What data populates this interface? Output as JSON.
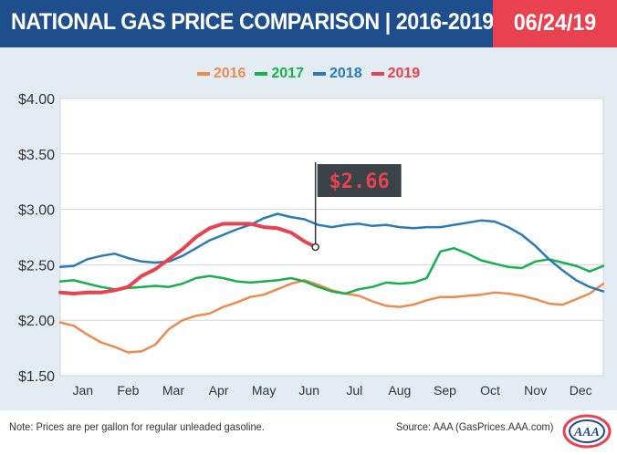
{
  "header": {
    "title": "NATIONAL GAS PRICE COMPARISON | 2016-2019",
    "date": "06/24/19"
  },
  "colors": {
    "header_bg": "#1f4e8c",
    "date_bg": "#e8414f",
    "panel_bg": "#e4ecf3",
    "s2016": "#ef8a4f",
    "s2017": "#16b04e",
    "s2018": "#2a7ab8",
    "s2019": "#e8414f"
  },
  "footer": {
    "note": "Note: Prices are per gallon for regular unleaded gasoline.",
    "source": "Source: AAA (GasPrices.AAA.com)"
  },
  "logo_text": "AAA",
  "chart_data": {
    "type": "line",
    "title": "NATIONAL GAS PRICE COMPARISON | 2016-2019",
    "x_unit": "month of year",
    "x_range": [
      0,
      12
    ],
    "categories": [
      "Jan",
      "Feb",
      "Mar",
      "Apr",
      "May",
      "Jun",
      "Jul",
      "Aug",
      "Sep",
      "Oct",
      "Nov",
      "Dec"
    ],
    "y_ticks": [
      "$4.00",
      "$3.50",
      "$3.00",
      "$2.50",
      "$2.00",
      "$1.50"
    ],
    "ylim": [
      1.5,
      4.0
    ],
    "grid": "horizontal",
    "legend_position": "top-center",
    "callout": {
      "label": "$2.66",
      "series": "2019",
      "x": 5.64,
      "y": 2.66
    },
    "series": [
      {
        "name": "2016",
        "color": "#ef8a4f",
        "x": [
          0,
          0.3,
          0.6,
          0.9,
          1.2,
          1.5,
          1.8,
          2.1,
          2.4,
          2.7,
          3.0,
          3.3,
          3.6,
          3.9,
          4.2,
          4.5,
          4.8,
          5.1,
          5.4,
          5.7,
          6.0,
          6.3,
          6.6,
          6.9,
          7.2,
          7.5,
          7.8,
          8.1,
          8.4,
          8.7,
          9.0,
          9.3,
          9.6,
          9.9,
          10.2,
          10.5,
          10.8,
          11.1,
          11.4,
          11.7,
          12.0
        ],
        "values": [
          1.98,
          1.95,
          1.87,
          1.8,
          1.76,
          1.71,
          1.72,
          1.78,
          1.92,
          2.0,
          2.04,
          2.06,
          2.12,
          2.16,
          2.21,
          2.23,
          2.28,
          2.33,
          2.36,
          2.32,
          2.27,
          2.24,
          2.22,
          2.17,
          2.13,
          2.12,
          2.14,
          2.18,
          2.21,
          2.21,
          2.22,
          2.23,
          2.25,
          2.24,
          2.22,
          2.19,
          2.15,
          2.14,
          2.19,
          2.24,
          2.33
        ]
      },
      {
        "name": "2017",
        "color": "#16b04e",
        "x": [
          0,
          0.3,
          0.6,
          0.9,
          1.2,
          1.5,
          1.8,
          2.1,
          2.4,
          2.7,
          3.0,
          3.3,
          3.6,
          3.9,
          4.2,
          4.5,
          4.8,
          5.1,
          5.4,
          5.7,
          6.0,
          6.3,
          6.6,
          6.9,
          7.2,
          7.5,
          7.8,
          8.1,
          8.4,
          8.7,
          9.0,
          9.3,
          9.6,
          9.9,
          10.2,
          10.5,
          10.8,
          11.1,
          11.4,
          11.7,
          12.0
        ],
        "values": [
          2.35,
          2.36,
          2.33,
          2.3,
          2.28,
          2.29,
          2.3,
          2.31,
          2.3,
          2.33,
          2.38,
          2.4,
          2.38,
          2.35,
          2.34,
          2.35,
          2.36,
          2.38,
          2.35,
          2.3,
          2.26,
          2.24,
          2.28,
          2.3,
          2.34,
          2.33,
          2.34,
          2.38,
          2.62,
          2.65,
          2.6,
          2.54,
          2.51,
          2.48,
          2.47,
          2.53,
          2.55,
          2.52,
          2.49,
          2.44,
          2.49
        ]
      },
      {
        "name": "2018",
        "color": "#2a7ab8",
        "x": [
          0,
          0.3,
          0.6,
          0.9,
          1.2,
          1.5,
          1.8,
          2.1,
          2.4,
          2.7,
          3.0,
          3.3,
          3.6,
          3.9,
          4.2,
          4.5,
          4.8,
          5.1,
          5.4,
          5.7,
          6.0,
          6.3,
          6.6,
          6.9,
          7.2,
          7.5,
          7.8,
          8.1,
          8.4,
          8.7,
          9.0,
          9.3,
          9.6,
          9.9,
          10.2,
          10.5,
          10.8,
          11.1,
          11.4,
          11.7,
          12.0
        ],
        "values": [
          2.48,
          2.49,
          2.55,
          2.58,
          2.6,
          2.56,
          2.53,
          2.52,
          2.53,
          2.58,
          2.65,
          2.72,
          2.77,
          2.82,
          2.86,
          2.92,
          2.96,
          2.93,
          2.91,
          2.86,
          2.84,
          2.86,
          2.87,
          2.85,
          2.86,
          2.84,
          2.83,
          2.84,
          2.84,
          2.86,
          2.88,
          2.9,
          2.89,
          2.84,
          2.77,
          2.67,
          2.55,
          2.45,
          2.36,
          2.3,
          2.26
        ]
      },
      {
        "name": "2019",
        "color": "#e8414f",
        "x": [
          0,
          0.3,
          0.6,
          0.9,
          1.2,
          1.5,
          1.8,
          2.1,
          2.4,
          2.7,
          3.0,
          3.3,
          3.6,
          3.9,
          4.2,
          4.5,
          4.8,
          5.1,
          5.4,
          5.64
        ],
        "values": [
          2.25,
          2.24,
          2.25,
          2.25,
          2.27,
          2.3,
          2.4,
          2.46,
          2.55,
          2.64,
          2.75,
          2.83,
          2.87,
          2.87,
          2.87,
          2.84,
          2.83,
          2.79,
          2.71,
          2.66
        ]
      }
    ]
  }
}
